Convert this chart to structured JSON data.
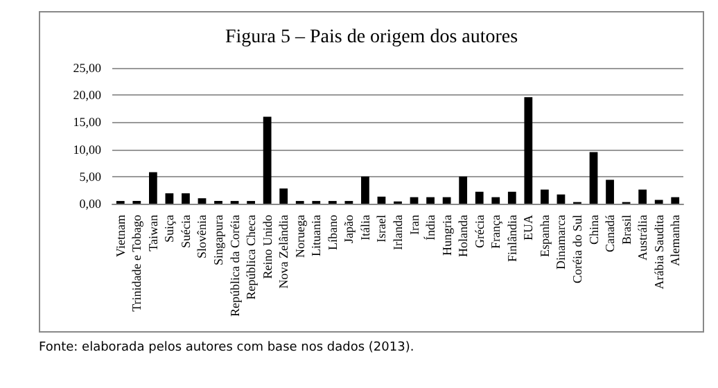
{
  "chart_data": {
    "type": "bar",
    "title": "Figura 5 – Pais de origem dos autores",
    "categories": [
      "Vietnam",
      "Trinidade e Tobago",
      "Taiwan",
      "Suiça",
      "Suécia",
      "Slovênia",
      "Singapura",
      "República da Coréia",
      "República Checa",
      "Reino Unido",
      "Nova Zelândia",
      "Noruega",
      "Lituania",
      "Líbano",
      "Japão",
      "Itália",
      "Israel",
      "Irlanda",
      "Iran",
      "Índia",
      "Hungria",
      "Holanda",
      "Grécia",
      "França",
      "Finlândia",
      "EUA",
      "Espanha",
      "Dinamarca",
      "Coréia do Sul",
      "China",
      "Canadá",
      "Brasil",
      "Austrália",
      "Arábia Saudita",
      "Alemanha"
    ],
    "values": [
      0.5,
      0.5,
      5.8,
      1.9,
      1.9,
      1.0,
      0.5,
      0.5,
      0.5,
      16.0,
      2.8,
      0.5,
      0.5,
      0.5,
      0.5,
      5.0,
      1.3,
      0.4,
      1.2,
      1.2,
      1.2,
      5.0,
      2.2,
      1.2,
      2.2,
      19.6,
      2.6,
      1.7,
      0.3,
      9.5,
      4.4,
      0.3,
      2.6,
      0.7,
      1.2
    ],
    "color": "#000000",
    "ylim": [
      0,
      25
    ],
    "yticks": [
      {
        "value": 0,
        "label": "0,00"
      },
      {
        "value": 5,
        "label": "5,00"
      },
      {
        "value": 10,
        "label": "10,00"
      },
      {
        "value": 15,
        "label": "15,00"
      },
      {
        "value": 20,
        "label": "20,00"
      },
      {
        "value": 25,
        "label": "25,00"
      }
    ],
    "grid": "y",
    "annotations": [
      "Fonte: elaborada pelos autores com base nos dados (2013)."
    ]
  }
}
